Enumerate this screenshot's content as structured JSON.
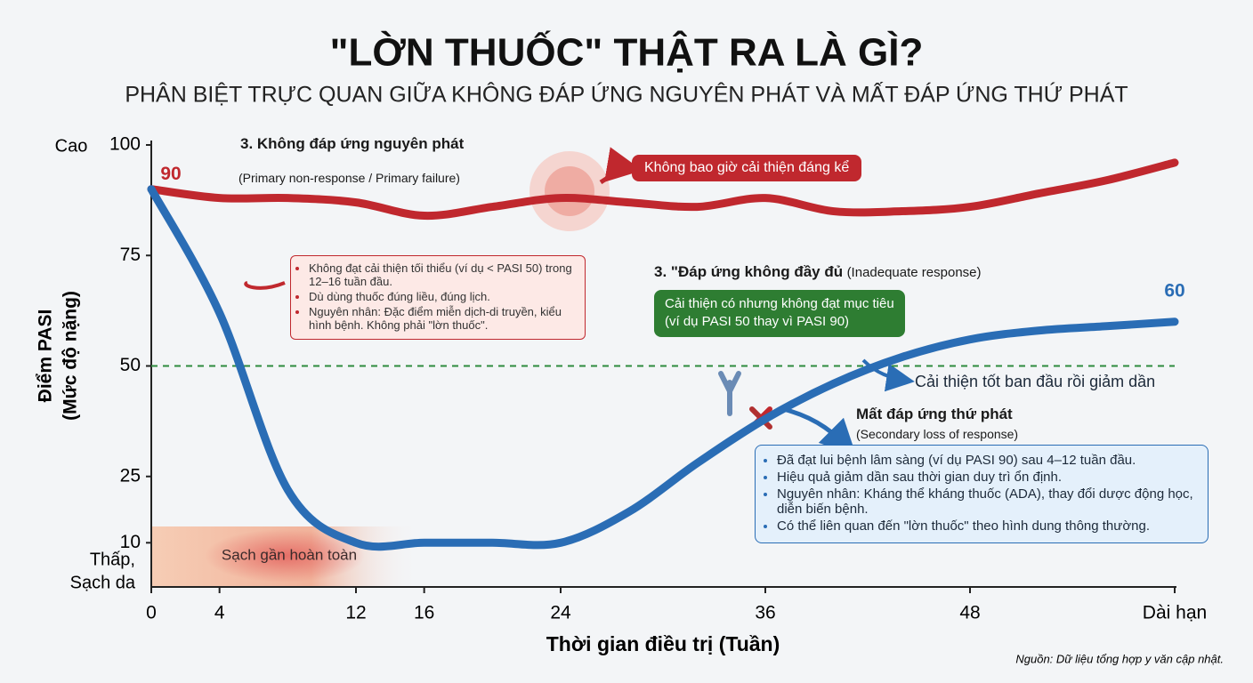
{
  "chart_data": {
    "type": "line",
    "title": "\"LỜN THUỐC\" THẬT RA LÀ GÌ?",
    "subtitle": "PHÂN BIỆT TRỰC QUAN GIỮA KHÔNG ĐÁP ỨNG NGUYÊN PHÁT VÀ MẤT ĐÁP ỨNG THỨ PHÁT",
    "xlabel": "Thời gian điều trị (Tuần)",
    "ylabel": [
      "Điểm PASI",
      "(Mức độ nặng)"
    ],
    "y_high_label": "Cao",
    "y_low_label": [
      "Thấp,",
      "Sạch da"
    ],
    "source": "Nguồn: Dữ liệu tổng hợp y văn cập nhật.",
    "x": [
      0,
      4,
      8,
      12,
      16,
      20,
      24,
      28,
      32,
      36,
      40,
      44,
      48,
      52,
      56,
      60
    ],
    "series": [
      {
        "color": "#c0282e",
        "values": [
          90,
          88,
          88,
          87,
          84,
          86,
          88,
          87,
          86,
          88,
          85,
          85,
          86,
          89,
          92,
          96
        ]
      },
      {
        "color": "#2a6db5",
        "values": [
          90,
          62,
          22,
          10,
          10,
          10,
          10,
          17,
          28,
          38,
          46,
          52,
          56,
          58,
          59,
          60
        ]
      }
    ],
    "xlim": [
      0,
      60
    ],
    "xticks": [
      0,
      4,
      12,
      16,
      24,
      36,
      48,
      {
        "value": 60,
        "label": "Dài hạn"
      }
    ],
    "ylim": [
      0,
      100
    ],
    "yticks": [
      10,
      25,
      50,
      75,
      100
    ],
    "reference_line": {
      "value": 50,
      "color": "#2e8b3e"
    },
    "annotations": {
      "primary": {
        "title": "3. Không đáp ứng nguyên phát",
        "subtitle": "(Primary non-response / Primary failure)",
        "tag": "Không bao giờ cải thiện đáng kể",
        "bullets": [
          "Không đạt cải thiện tối thiểu (ví dụ < PASI 50) trong 12–16 tuần đầu.",
          "Dù dùng thuốc đúng liều, đúng lịch.",
          "Nguyên nhân: Đặc điểm miễn dịch-di truyền, kiểu hình bệnh. Không phải \"lờn thuốc\"."
        ]
      },
      "inadequate": {
        "title": "3. \"Đáp ứng không đầy đủ",
        "subtitle": "(Inadequate response)",
        "box": [
          "Cải thiện có nhưng không đạt mục tiêu",
          "(ví dụ PASI 50 thay vì PASI 90)"
        ],
        "arrow_text": "Cải thiện tốt ban đầu rồi giảm dần"
      },
      "secondary": {
        "title": "Mất đáp ứng thứ phát",
        "subtitle": "(Secondary loss of response)",
        "bullets": [
          "Đã đạt lui bệnh lâm sàng (ví dụ PASI 90) sau 4–12 tuần đầu.",
          "Hiệu quả giảm dần sau thời gian duy trì ổn định.",
          "Nguyên nhân: Kháng thể kháng thuốc (ADA), thay đổi dược động học, diễn biến bệnh.",
          "Có thể liên quan đến \"lờn thuốc\" theo hình dung thông thường."
        ]
      },
      "clear_skin": "Sạch gần hoàn toàn"
    }
  }
}
